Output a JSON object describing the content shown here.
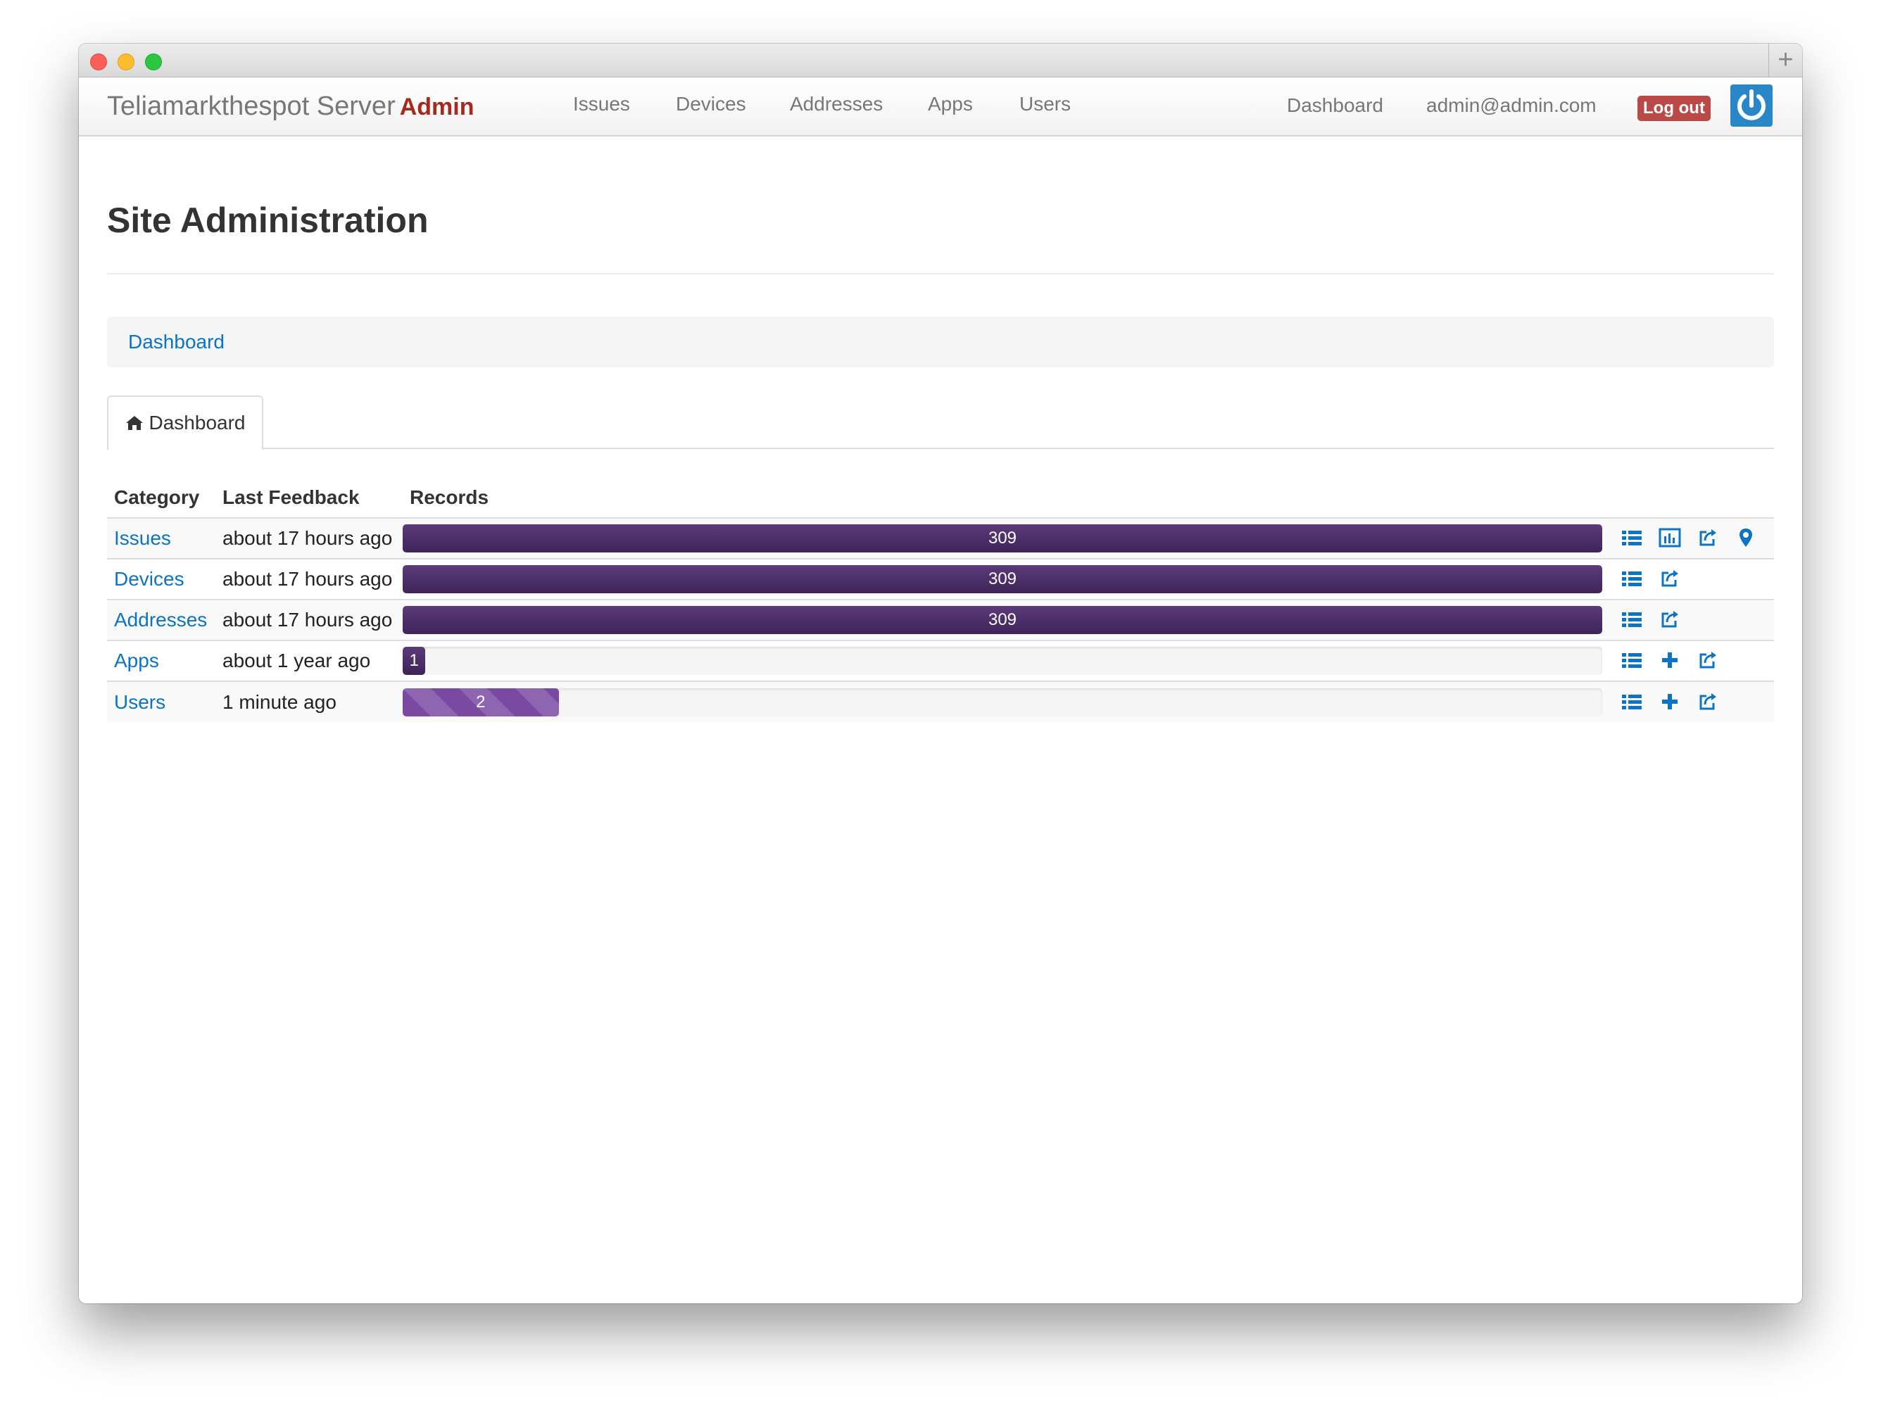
{
  "window": {
    "new_tab_label": "+"
  },
  "navbar": {
    "brand": "Teliamarkthespot Server",
    "brand_suffix": "Admin",
    "links": [
      "Issues",
      "Devices",
      "Addresses",
      "Apps",
      "Users"
    ],
    "dashboard": "Dashboard",
    "user_email": "admin@admin.com",
    "logout": "Log out"
  },
  "page": {
    "title": "Site Administration",
    "breadcrumb": "Dashboard",
    "tab": "Dashboard"
  },
  "table": {
    "headers": [
      "Category",
      "Last Feedback",
      "Records"
    ],
    "rows": [
      {
        "category": "Issues",
        "feedback": "about 17 hours ago",
        "records": "309",
        "fill": 1.0,
        "actions": [
          "list-icon",
          "chart-icon",
          "export-icon",
          "map-marker-icon"
        ]
      },
      {
        "category": "Devices",
        "feedback": "about 17 hours ago",
        "records": "309",
        "fill": 1.0,
        "actions": [
          "list-icon",
          "export-icon"
        ]
      },
      {
        "category": "Addresses",
        "feedback": "about 17 hours ago",
        "records": "309",
        "fill": 1.0,
        "actions": [
          "list-icon",
          "export-icon"
        ]
      },
      {
        "category": "Apps",
        "feedback": "about 1 year ago",
        "records": "1",
        "fill": 0.019,
        "actions": [
          "list-icon",
          "plus-icon",
          "export-icon"
        ]
      },
      {
        "category": "Users",
        "feedback": "1 minute ago",
        "records": "2",
        "fill": 0.13,
        "actions": [
          "list-icon",
          "plus-icon",
          "export-icon"
        ]
      }
    ]
  },
  "colors": {
    "link": "#0b74c4",
    "bar": "#4b2d66",
    "bar_striped": "#7a4aa3",
    "logout": "#b94a48",
    "power_button": "#2a87c7"
  }
}
